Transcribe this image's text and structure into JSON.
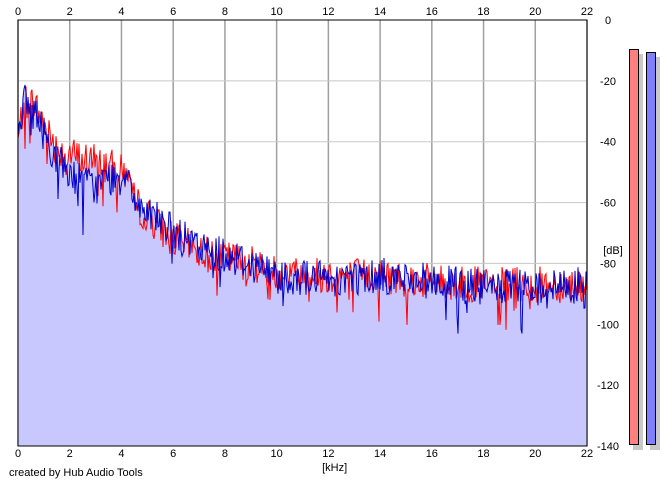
{
  "chart_data": {
    "type": "line",
    "title": "",
    "xlabel": "[kHz]",
    "ylabel": "[dB]",
    "xlim": [
      0,
      22
    ],
    "ylim": [
      -140,
      0
    ],
    "xticks": [
      "0",
      "2",
      "4",
      "6",
      "8",
      "10",
      "12",
      "14",
      "16",
      "18",
      "20",
      "22"
    ],
    "yticks": [
      "0",
      "-20",
      "-40",
      "-60",
      "-80",
      "-100",
      "-120",
      "-140"
    ],
    "grid": true,
    "series": [
      {
        "color": "#ff0000",
        "x": [
          0,
          0.2,
          0.4,
          0.6,
          1.0,
          1.5,
          2.0,
          2.5,
          3.0,
          3.5,
          4.0,
          4.3,
          4.5,
          5.0,
          5.5,
          6.0,
          7.0,
          8.0,
          9.0,
          10.0,
          12.0,
          14.0,
          16.0,
          18.0,
          20.0,
          22.0
        ],
        "y": [
          -40,
          -28,
          -26,
          -27,
          -34,
          -42,
          -44,
          -46,
          -46,
          -48,
          -50,
          -50,
          -60,
          -64,
          -68,
          -72,
          -76,
          -78,
          -80,
          -83,
          -84,
          -84,
          -86,
          -87,
          -87,
          -87
        ]
      },
      {
        "color": "#0000cc",
        "x": [
          0,
          0.2,
          0.4,
          0.6,
          1.0,
          1.5,
          2.0,
          2.5,
          3.0,
          3.5,
          4.0,
          4.3,
          4.5,
          5.0,
          5.5,
          6.0,
          7.0,
          8.0,
          9.0,
          10.0,
          12.0,
          14.0,
          16.0,
          18.0,
          20.0,
          22.0
        ],
        "y": [
          -35,
          -27,
          -28,
          -30,
          -37,
          -46,
          -50,
          -53,
          -55,
          -52,
          -52,
          -48,
          -60,
          -62,
          -66,
          -70,
          -75,
          -77,
          -80,
          -84,
          -85,
          -84,
          -86,
          -88,
          -88,
          -87
        ]
      }
    ]
  },
  "credit": "created by Hub Audio Tools",
  "colors": {
    "fill": "#c8c8ff",
    "left_meter": "#ff8080",
    "right_meter": "#8080ff",
    "grid": "#c8c8c8"
  },
  "meters": [
    {
      "name": "left-level-meter",
      "color": "#ff8080",
      "level_db": -7
    },
    {
      "name": "right-level-meter",
      "color": "#8080ff",
      "level_db": -10
    }
  ]
}
